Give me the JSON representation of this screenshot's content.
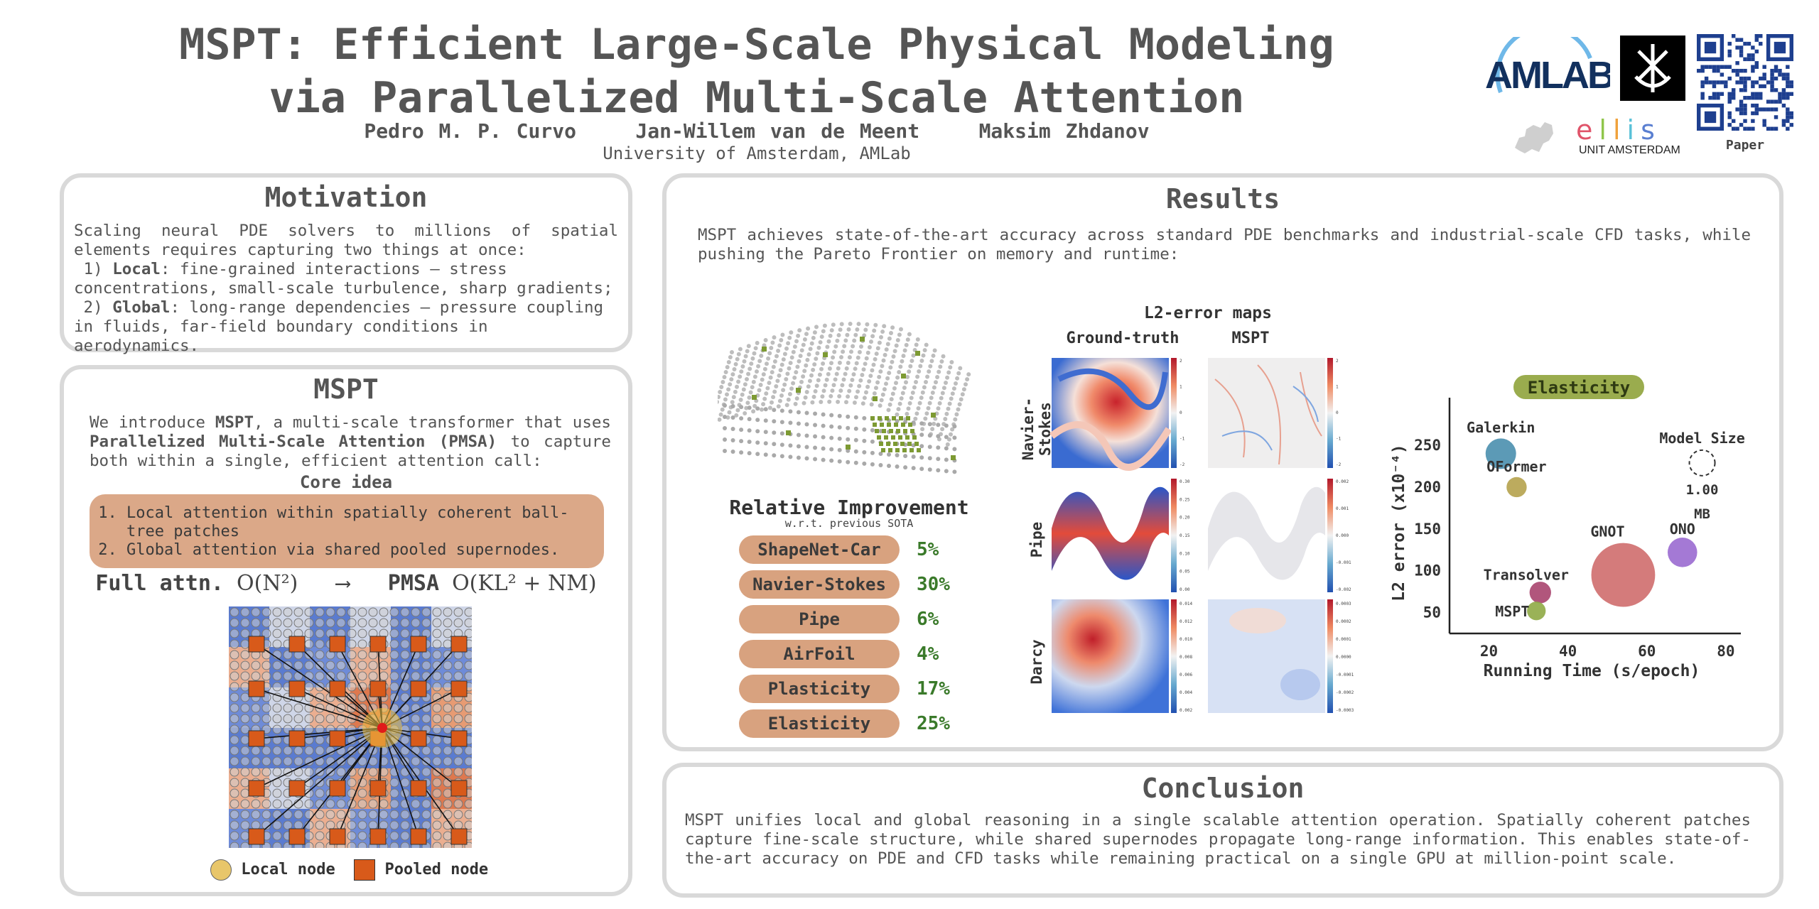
{
  "header": {
    "title_line1": "MSPT: Efficient Large-Scale Physical Modeling",
    "title_line2": "via Parallelized Multi-Scale Attention",
    "authors": [
      "Pedro M. P. Curvo",
      "Jan-Willem van de Meent",
      "Maksim Zhdanov"
    ],
    "affiliation": "University of Amsterdam, AMLab",
    "logos": {
      "amlab": "AMLAB",
      "ellis": "ellis",
      "ellis_unit": "UNIT AMSTERDAM",
      "paper_label": "Paper"
    }
  },
  "motivation": {
    "title": "Motivation",
    "intro": "Scaling neural PDE solvers to millions of spatial elements requires capturing two things at once:",
    "item1_prefix": "1) ",
    "item1_bold": "Local",
    "item1_rest": ": fine-grained interactions — stress concentrations, small-scale turbulence, sharp gradients;",
    "item2_prefix": "2) ",
    "item2_bold": "Global",
    "item2_rest": ": long-range dependencies — pressure coupling in fluids, far-field boundary conditions in aerodynamics."
  },
  "mspt": {
    "title": "MSPT",
    "intro_a": "We introduce ",
    "intro_b": "MSPT",
    "intro_c": ", a multi-scale transformer that uses ",
    "intro_d": "Parallelized Multi-Scale Attention (PMSA)",
    "intro_e": " to capture both within a single, efficient attention call:",
    "core_title": "Core idea",
    "core_items": [
      "Local attention within spatially coherent ball-tree patches",
      "Global attention via shared pooled supernodes."
    ],
    "full_attn_label": "Full attn.",
    "full_attn_formula": "O(N²)",
    "arrow": "⟶",
    "pmsa_label": "PMSA",
    "pmsa_formula": "O(KL² + NM)",
    "legend_local": "Local node",
    "legend_pooled": "Pooled node"
  },
  "results": {
    "title": "Results",
    "intro": "MSPT achieves state-of-the-art accuracy across standard PDE benchmarks and industrial-scale CFD tasks, while pushing the Pareto Frontier on memory and runtime:",
    "improvement_title": "Relative Improvement",
    "improvement_subtitle": "w.r.t. previous SOTA",
    "improvements": [
      {
        "label": "ShapeNet-Car",
        "value": "5%"
      },
      {
        "label": "Navier-Stokes",
        "value": "30%"
      },
      {
        "label": "Pipe",
        "value": "6%"
      },
      {
        "label": "AirFoil",
        "value": "4%"
      },
      {
        "label": "Plasticity",
        "value": "17%"
      },
      {
        "label": "Elasticity",
        "value": "25%"
      }
    ],
    "maps_title": "L2-error maps",
    "maps_col1": "Ground-truth",
    "maps_col2": "MSPT",
    "maps_rows": [
      "Navier-Stokes",
      "Pipe",
      "Darcy"
    ],
    "colorbar_ticks": {
      "ns_gt": [
        "2",
        "1",
        "0",
        "-1",
        "-2"
      ],
      "ns_mspt": [
        "2",
        "1",
        "0",
        "-1",
        "-2"
      ],
      "pipe_gt": [
        "0.30",
        "0.25",
        "0.20",
        "0.15",
        "0.10",
        "0.05",
        "0.00"
      ],
      "pipe_mspt": [
        "0.002",
        "0.001",
        "0.000",
        "-0.001",
        "-0.002"
      ],
      "darcy_gt": [
        "0.014",
        "0.012",
        "0.010",
        "0.008",
        "0.006",
        "0.004",
        "0.002"
      ],
      "darcy_mspt": [
        "0.0003",
        "0.0002",
        "0.0001",
        "0.0000",
        "-0.0001",
        "-0.0002",
        "-0.0003"
      ]
    }
  },
  "conclusion": {
    "title": "Conclusion",
    "text": "MSPT unifies local and global reasoning in a single scalable attention operation. Spatially coherent patches capture fine-scale structure, while shared supernodes propagate long-range information. This enables state-of-the-art accuracy on PDE and CFD tasks while remaining practical on a single GPU at million-point scale."
  },
  "chart_data": {
    "type": "scatter",
    "title": "Elasticity",
    "xlabel": "Running Time (s/epoch)",
    "ylabel": "L2 error (x10⁻⁴)",
    "xlim": [
      10,
      82
    ],
    "ylim": [
      25,
      290
    ],
    "xticks": [
      20,
      40,
      60,
      80
    ],
    "yticks": [
      50,
      100,
      150,
      200,
      250
    ],
    "size_legend": {
      "title": "Model Size",
      "value": "1.00",
      "unit": "MB"
    },
    "points": [
      {
        "name": "Galerkin",
        "x": 23,
        "y": 240,
        "size_mb": 0.8,
        "color": "#4a8fae"
      },
      {
        "name": "OFormer",
        "x": 27,
        "y": 200,
        "size_mb": 0.35,
        "color": "#b5a24c"
      },
      {
        "name": "GNOT",
        "x": 54,
        "y": 95,
        "size_mb": 3.5,
        "color": "#cf6d6d"
      },
      {
        "name": "ONO",
        "x": 69,
        "y": 122,
        "size_mb": 0.75,
        "color": "#9a6ad0"
      },
      {
        "name": "Transolver",
        "x": 33,
        "y": 74,
        "size_mb": 0.4,
        "color": "#a8446e"
      },
      {
        "name": "MSPT",
        "x": 32,
        "y": 52,
        "size_mb": 0.3,
        "color": "#8faa45"
      }
    ]
  }
}
